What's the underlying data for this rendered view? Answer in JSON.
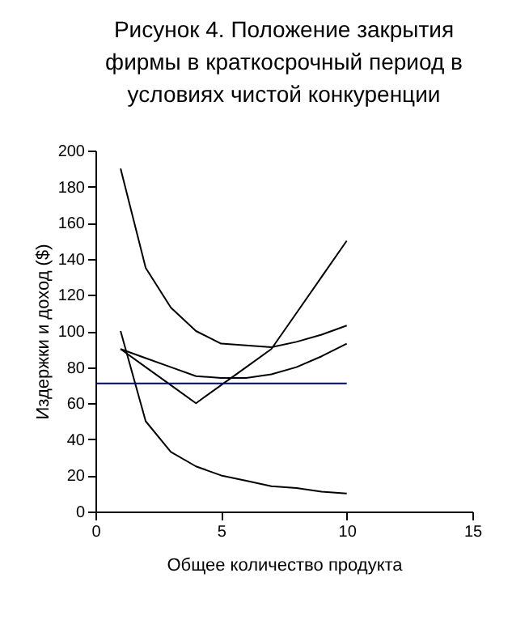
{
  "chart_data": {
    "type": "line",
    "title": [
      "Рисунок 4. Положение закрытия",
      "фирмы в краткосрочный период в",
      "условиях чистой конкуренции"
    ],
    "xlabel": "Общее количество продукта",
    "ylabel": "Издержки и доход ($)",
    "x": [
      1,
      2,
      3,
      4,
      5,
      6,
      7,
      8,
      9,
      10
    ],
    "series": [
      {
        "color": "#000000",
        "values": [
          190,
          135,
          113,
          100,
          93,
          92,
          91,
          94,
          98,
          103
        ]
      },
      {
        "color": "#000000",
        "values": [
          90,
          85,
          80,
          75,
          74,
          74,
          76,
          80,
          86,
          93
        ]
      },
      {
        "color": "#000000",
        "values": [
          100,
          50,
          33,
          25,
          20,
          17,
          14,
          13,
          11,
          10
        ]
      },
      {
        "color": "#000000",
        "values": [
          90,
          80,
          70,
          60,
          70,
          80,
          90,
          110,
          130,
          150
        ]
      },
      {
        "color": "#000080",
        "x": [
          0,
          10
        ],
        "values": [
          71,
          71
        ]
      }
    ],
    "xlim": [
      0,
      15
    ],
    "xticks": [
      0,
      5,
      10,
      15
    ],
    "ylim": [
      0,
      200
    ],
    "yticks": [
      0,
      20,
      40,
      60,
      80,
      100,
      120,
      140,
      160,
      180,
      200
    ],
    "grid": false,
    "marker": "none",
    "line_style": "solid"
  }
}
